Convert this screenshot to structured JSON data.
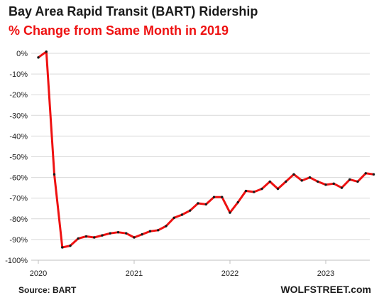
{
  "chart_data": {
    "type": "line",
    "title": "Bay Area Rapid Transit (BART) Ridership",
    "subtitle": "% Change from Same Month in 2019",
    "xlabel": "",
    "ylabel": "",
    "ylim": [
      -100,
      0
    ],
    "y_ticks": [
      0,
      -10,
      -20,
      -30,
      -40,
      -50,
      -60,
      -70,
      -80,
      -90,
      -100
    ],
    "y_tick_labels": [
      "0%",
      "-10%",
      "-20%",
      "-30%",
      "-40%",
      "-50%",
      "-60%",
      "-70%",
      "-80%",
      "-90%",
      "-100%"
    ],
    "x_ticks": [
      "2020-01",
      "2021-01",
      "2022-01",
      "2023-01"
    ],
    "x_tick_labels": [
      "2020",
      "2021",
      "2022",
      "2023"
    ],
    "grid": "horizontal",
    "line_color": "#ee1111",
    "marker_color": "#1a1a1a",
    "series": [
      {
        "x": [
          "2020-01",
          "2020-02",
          "2020-03",
          "2020-04",
          "2020-05",
          "2020-06",
          "2020-07",
          "2020-08",
          "2020-09",
          "2020-10",
          "2020-11",
          "2020-12",
          "2021-01",
          "2021-02",
          "2021-03",
          "2021-04",
          "2021-05",
          "2021-06",
          "2021-07",
          "2021-08",
          "2021-09",
          "2021-10",
          "2021-11",
          "2021-12",
          "2022-01",
          "2022-02",
          "2022-03",
          "2022-04",
          "2022-05",
          "2022-06",
          "2022-07",
          "2022-08",
          "2022-09",
          "2022-10",
          "2022-11",
          "2022-12",
          "2023-01",
          "2023-02",
          "2023-03",
          "2023-04",
          "2023-05",
          "2023-06",
          "2023-07"
        ],
        "values": [
          -2,
          0.8,
          -58.5,
          -93.8,
          -93,
          -89.5,
          -88.5,
          -89,
          -88,
          -87,
          -86.5,
          -87,
          -89,
          -87.5,
          -86,
          -85.5,
          -83.5,
          -79.5,
          -78,
          -76,
          -72.5,
          -73,
          -69.5,
          -69.5,
          -77,
          -72,
          -66.5,
          -67,
          -65.5,
          -62,
          -65.5,
          -62,
          -58.5,
          -61.5,
          -60,
          -62,
          -63.5,
          -63,
          -65,
          -61,
          -62,
          -58,
          -58.5
        ]
      }
    ]
  },
  "footer": {
    "source": "Source: BART",
    "brand": "WOLFSTREET.com"
  }
}
